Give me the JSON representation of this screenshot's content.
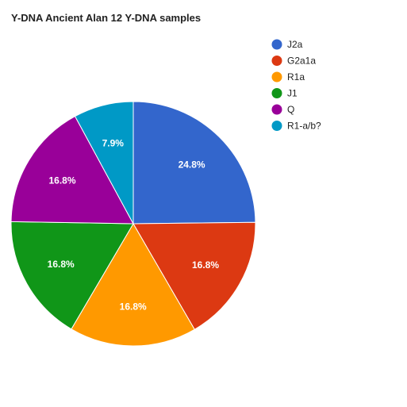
{
  "chart_data": {
    "type": "pie",
    "title": "Y-DNA Ancient Alan 12 Y-DNA samples",
    "slices": [
      {
        "label": "J2a",
        "value": 24.8,
        "display": "24.8%",
        "color": "#3366cc"
      },
      {
        "label": "G2a1a",
        "value": 16.8,
        "display": "16.8%",
        "color": "#dc3912"
      },
      {
        "label": "R1a",
        "value": 16.8,
        "display": "16.8%",
        "color": "#ff9900"
      },
      {
        "label": "J1",
        "value": 16.8,
        "display": "16.8%",
        "color": "#109618"
      },
      {
        "label": "Q",
        "value": 16.8,
        "display": "16.8%",
        "color": "#990099"
      },
      {
        "label": "R1-a/b?",
        "value": 7.9,
        "display": "7.9%",
        "color": "#0099c6"
      }
    ],
    "legend_position": "right"
  }
}
